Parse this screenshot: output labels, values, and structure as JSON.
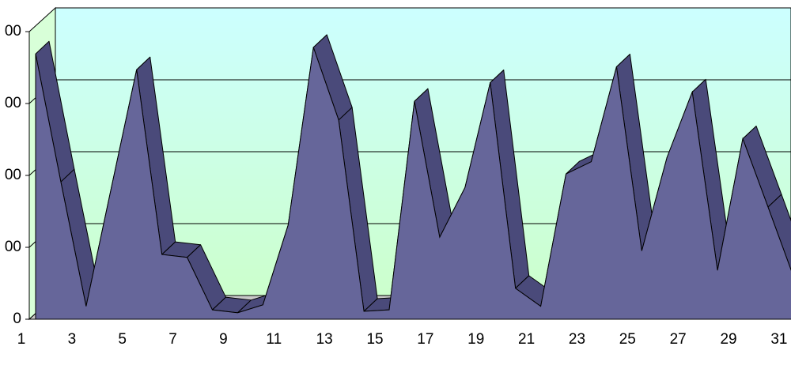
{
  "chart_data": {
    "type": "area3d",
    "categories": [
      "1",
      null,
      "3",
      null,
      "5",
      null,
      "7",
      null,
      "9",
      null,
      "11",
      null,
      "13",
      null,
      "15",
      null,
      "17",
      null,
      "19",
      null,
      "21",
      null,
      "23",
      null,
      "25",
      null,
      "27",
      null,
      "29",
      null,
      "31"
    ],
    "values": [
      369,
      191,
      18,
      183,
      347,
      90,
      86,
      13,
      9,
      20,
      131,
      378,
      277,
      11,
      13,
      303,
      114,
      183,
      329,
      43,
      18,
      202,
      219,
      351,
      95,
      225,
      316,
      68,
      251,
      156,
      60
    ],
    "color": "#66669a",
    "ylim": [
      0,
      400
    ],
    "yticks": [
      0,
      {
        "value": 100,
        "label": "00"
      },
      {
        "value": 200,
        "label": "00"
      },
      {
        "value": 300,
        "label": "00"
      },
      {
        "value": 400,
        "label": "00"
      }
    ],
    "grid": true
  }
}
